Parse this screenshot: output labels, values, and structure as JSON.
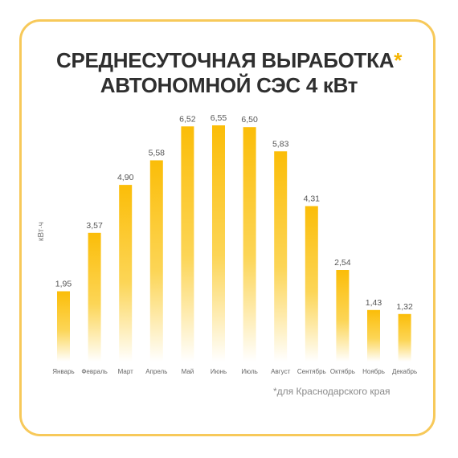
{
  "title": {
    "line1": "СРЕДНЕСУТОЧНАЯ ВЫРАБОТКА",
    "asterisk": "*",
    "line2": "АВТОНОМНОЙ СЭС 4 кВт"
  },
  "footnote": "*для Краснодарского края",
  "colors": {
    "bar_top": "#fbbd08",
    "bar_mid": "#fcd34d",
    "bar_bottom": "#ffffff",
    "border": "#f7c95a",
    "asterisk": "#f5b400",
    "title_text": "#2f2f2f"
  },
  "chart_data": {
    "type": "bar",
    "ylabel": "кВт·ч",
    "categories": [
      "Январь",
      "Февраль",
      "Март",
      "Апрель",
      "Май",
      "Июнь",
      "Июль",
      "Август",
      "Сентябрь",
      "Октябрь",
      "Ноябрь",
      "Декабрь"
    ],
    "values": [
      1.95,
      3.57,
      4.9,
      5.58,
      6.52,
      6.55,
      6.5,
      5.83,
      4.31,
      2.54,
      1.43,
      1.32
    ],
    "value_labels": [
      "1,95",
      "3,57",
      "4,90",
      "5,58",
      "6,52",
      "6,55",
      "6,50",
      "5,83",
      "4,31",
      "2,54",
      "1,43",
      "1,32"
    ],
    "ylim": [
      0,
      6.55
    ],
    "grid": false,
    "legend": "none"
  }
}
